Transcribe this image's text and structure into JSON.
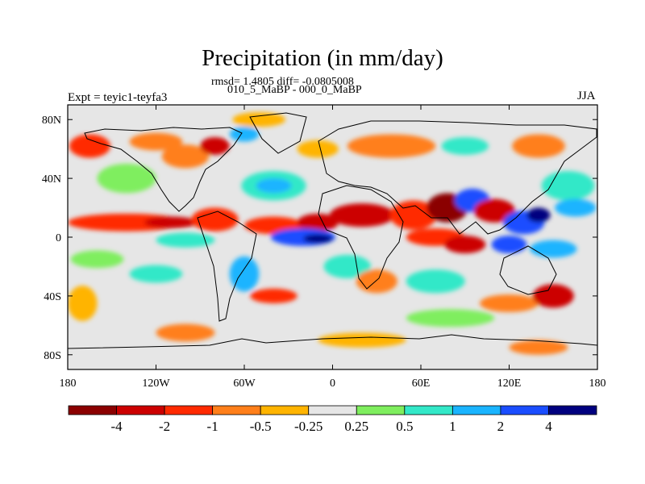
{
  "chart_data": {
    "type": "heatmap",
    "title": "Precipitation (in mm/day)",
    "subtitle_stats": "rmsd= 1.4805 diff= -0.0805008",
    "subtitle_experiment": "010_5_MaBP - 000_0_MaBP",
    "left_label": "Expt = teyic1-teyfa3",
    "right_label": "JJA",
    "x_ticks": [
      "180",
      "120W",
      "60W",
      "0",
      "60E",
      "120E",
      "180"
    ],
    "x_tick_values": [
      -180,
      -120,
      -60,
      0,
      60,
      120,
      180
    ],
    "y_ticks": [
      "80N",
      "40N",
      "0",
      "40S",
      "80S"
    ],
    "y_tick_values": [
      80,
      40,
      0,
      -40,
      -80
    ],
    "xlim": [
      -180,
      180
    ],
    "ylim": [
      -90,
      90
    ],
    "colorbar": {
      "levels": [
        "-4",
        "-2",
        "-1",
        "-0.5",
        "-0.25",
        "0.25",
        "0.5",
        "1",
        "2",
        "4"
      ],
      "colors": [
        "#8b0000",
        "#cc0000",
        "#ff2a00",
        "#ff7f1a",
        "#ffb400",
        "#e6e6e6",
        "#7fee5e",
        "#33e8c8",
        "#1ab4ff",
        "#1a4dff",
        "#00007f"
      ]
    },
    "blobs": [
      {
        "lon": -165,
        "lat": 62,
        "rx": 14,
        "ry": 8,
        "c": "#ff2a00"
      },
      {
        "lon": -120,
        "lat": 65,
        "rx": 18,
        "ry": 6,
        "c": "#ff7f1a"
      },
      {
        "lon": -100,
        "lat": 55,
        "rx": 16,
        "ry": 8,
        "c": "#ff7f1a"
      },
      {
        "lon": -80,
        "lat": 62,
        "rx": 10,
        "ry": 6,
        "c": "#cc0000"
      },
      {
        "lon": -60,
        "lat": 70,
        "rx": 10,
        "ry": 5,
        "c": "#1ab4ff"
      },
      {
        "lon": -50,
        "lat": 80,
        "rx": 18,
        "ry": 5,
        "c": "#ffb400"
      },
      {
        "lon": -10,
        "lat": 60,
        "rx": 14,
        "ry": 6,
        "c": "#ffb400"
      },
      {
        "lon": 40,
        "lat": 62,
        "rx": 30,
        "ry": 8,
        "c": "#ff7f1a"
      },
      {
        "lon": 90,
        "lat": 62,
        "rx": 16,
        "ry": 6,
        "c": "#33e8c8"
      },
      {
        "lon": 140,
        "lat": 62,
        "rx": 18,
        "ry": 8,
        "c": "#ff7f1a"
      },
      {
        "lon": -140,
        "lat": 40,
        "rx": 20,
        "ry": 10,
        "c": "#7fee5e"
      },
      {
        "lon": -40,
        "lat": 35,
        "rx": 22,
        "ry": 10,
        "c": "#33e8c8"
      },
      {
        "lon": -40,
        "lat": 35,
        "rx": 12,
        "ry": 5,
        "c": "#1ab4ff"
      },
      {
        "lon": 160,
        "lat": 35,
        "rx": 18,
        "ry": 10,
        "c": "#33e8c8"
      },
      {
        "lon": 165,
        "lat": 20,
        "rx": 14,
        "ry": 6,
        "c": "#1ab4ff"
      },
      {
        "lon": -140,
        "lat": 10,
        "rx": 40,
        "ry": 6,
        "c": "#ff2a00"
      },
      {
        "lon": -110,
        "lat": 10,
        "rx": 18,
        "ry": 4,
        "c": "#cc0000"
      },
      {
        "lon": -80,
        "lat": 12,
        "rx": 16,
        "ry": 8,
        "c": "#ff2a00"
      },
      {
        "lon": -40,
        "lat": 8,
        "rx": 20,
        "ry": 6,
        "c": "#ff2a00"
      },
      {
        "lon": -10,
        "lat": 10,
        "rx": 14,
        "ry": 6,
        "c": "#cc0000"
      },
      {
        "lon": 20,
        "lat": 15,
        "rx": 22,
        "ry": 8,
        "c": "#cc0000"
      },
      {
        "lon": 55,
        "lat": 15,
        "rx": 16,
        "ry": 10,
        "c": "#ff2a00"
      },
      {
        "lon": 78,
        "lat": 20,
        "rx": 14,
        "ry": 10,
        "c": "#8b0000"
      },
      {
        "lon": 95,
        "lat": 25,
        "rx": 12,
        "ry": 8,
        "c": "#1a4dff"
      },
      {
        "lon": 110,
        "lat": 18,
        "rx": 14,
        "ry": 8,
        "c": "#cc0000"
      },
      {
        "lon": 130,
        "lat": 10,
        "rx": 14,
        "ry": 8,
        "c": "#1a4dff"
      },
      {
        "lon": 140,
        "lat": 15,
        "rx": 8,
        "ry": 5,
        "c": "#00007f"
      },
      {
        "lon": -20,
        "lat": 0,
        "rx": 22,
        "ry": 6,
        "c": "#1a4dff"
      },
      {
        "lon": -10,
        "lat": -1,
        "rx": 10,
        "ry": 3,
        "c": "#00007f"
      },
      {
        "lon": -100,
        "lat": -2,
        "rx": 20,
        "ry": 5,
        "c": "#33e8c8"
      },
      {
        "lon": 70,
        "lat": 0,
        "rx": 20,
        "ry": 6,
        "c": "#ff2a00"
      },
      {
        "lon": 90,
        "lat": -5,
        "rx": 14,
        "ry": 6,
        "c": "#cc0000"
      },
      {
        "lon": 120,
        "lat": -5,
        "rx": 12,
        "ry": 6,
        "c": "#1a4dff"
      },
      {
        "lon": 150,
        "lat": -8,
        "rx": 16,
        "ry": 6,
        "c": "#1ab4ff"
      },
      {
        "lon": -160,
        "lat": -15,
        "rx": 18,
        "ry": 6,
        "c": "#7fee5e"
      },
      {
        "lon": -170,
        "lat": -45,
        "rx": 10,
        "ry": 12,
        "c": "#ffb400"
      },
      {
        "lon": -120,
        "lat": -25,
        "rx": 18,
        "ry": 6,
        "c": "#33e8c8"
      },
      {
        "lon": -60,
        "lat": -25,
        "rx": 10,
        "ry": 12,
        "c": "#1ab4ff"
      },
      {
        "lon": -40,
        "lat": -40,
        "rx": 16,
        "ry": 5,
        "c": "#ff2a00"
      },
      {
        "lon": 10,
        "lat": -20,
        "rx": 16,
        "ry": 8,
        "c": "#33e8c8"
      },
      {
        "lon": 30,
        "lat": -30,
        "rx": 14,
        "ry": 8,
        "c": "#ff7f1a"
      },
      {
        "lon": 70,
        "lat": -30,
        "rx": 20,
        "ry": 8,
        "c": "#33e8c8"
      },
      {
        "lon": 80,
        "lat": -55,
        "rx": 30,
        "ry": 6,
        "c": "#7fee5e"
      },
      {
        "lon": 120,
        "lat": -45,
        "rx": 20,
        "ry": 6,
        "c": "#ff7f1a"
      },
      {
        "lon": 150,
        "lat": -40,
        "rx": 14,
        "ry": 8,
        "c": "#cc0000"
      },
      {
        "lon": -100,
        "lat": -65,
        "rx": 20,
        "ry": 6,
        "c": "#ff7f1a"
      },
      {
        "lon": 20,
        "lat": -70,
        "rx": 30,
        "ry": 5,
        "c": "#ffb400"
      },
      {
        "lon": 140,
        "lat": -75,
        "rx": 20,
        "ry": 5,
        "c": "#ff7f1a"
      }
    ]
  }
}
